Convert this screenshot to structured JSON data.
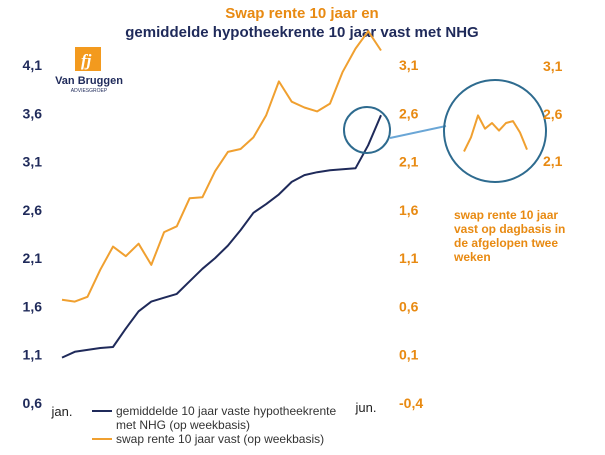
{
  "chart_data": {
    "type": "line",
    "title_line1": "Swap rente 10 jaar en",
    "title_line2": "gemiddelde hypotheekrente 10 jaar vast met NHG",
    "colors": {
      "title_line1": "#e88a12",
      "title_line2": "#1f2a5a",
      "mortgage": "#1f2a5a",
      "swap": "#f0a030",
      "inset_circle": "#2e6b8f",
      "callout": "#6aa6d6",
      "logo_orange": "#f39a1e",
      "logo_navy": "#1f2a5a"
    },
    "logo": {
      "name": "Van Bruggen",
      "sub": "ADVIESGROEP",
      "icon": "fj-logo-icon"
    },
    "x_labels": [
      "jan.",
      "jun."
    ],
    "y_left": {
      "ticks": [
        "0,6",
        "1,1",
        "1,6",
        "2,1",
        "2,6",
        "3,1",
        "3,6",
        "4,1"
      ],
      "ylim": [
        0.6,
        4.1
      ]
    },
    "y_right": {
      "ticks": [
        "-0,4",
        "0,1",
        "0,6",
        "1,1",
        "1,6",
        "2,1",
        "2,6",
        "3,1"
      ],
      "ylim": [
        -0.4,
        3.1
      ]
    },
    "series": [
      {
        "name": "gemiddelde 10 jaar vaste hypotheekrente met NHG (op weekbasis)",
        "name_line1": "gemiddelde 10 jaar vaste hypotheekrente",
        "name_line2": "met NHG (op weekbasis)",
        "axis": "left",
        "values": [
          1.07,
          1.13,
          1.15,
          1.17,
          1.18,
          1.37,
          1.55,
          1.65,
          1.69,
          1.73,
          1.86,
          1.99,
          2.1,
          2.23,
          2.39,
          2.57,
          2.66,
          2.76,
          2.89,
          2.96,
          2.99,
          3.01,
          3.02,
          3.03,
          3.27,
          3.58
        ]
      },
      {
        "name": "swap rente 10 jaar vast (op weekbasis)",
        "axis": "right",
        "values": [
          0.67,
          0.65,
          0.7,
          0.98,
          1.22,
          1.12,
          1.25,
          1.03,
          1.37,
          1.43,
          1.72,
          1.73,
          2.0,
          2.2,
          2.23,
          2.35,
          2.58,
          2.93,
          2.72,
          2.66,
          2.62,
          2.7,
          3.03,
          3.27,
          3.45,
          3.25
        ]
      }
    ],
    "inset": {
      "ticks": [
        "3,1",
        "2,6",
        "2,1"
      ],
      "ylim": [
        2.1,
        3.1
      ],
      "values": [
        2.2,
        2.35,
        2.58,
        2.44,
        2.5,
        2.42,
        2.5,
        2.52,
        2.4,
        2.22
      ],
      "annotation": [
        "swap rente 10 jaar",
        "vast op dagbasis in",
        "de afgelopen twee",
        "weken"
      ]
    }
  }
}
